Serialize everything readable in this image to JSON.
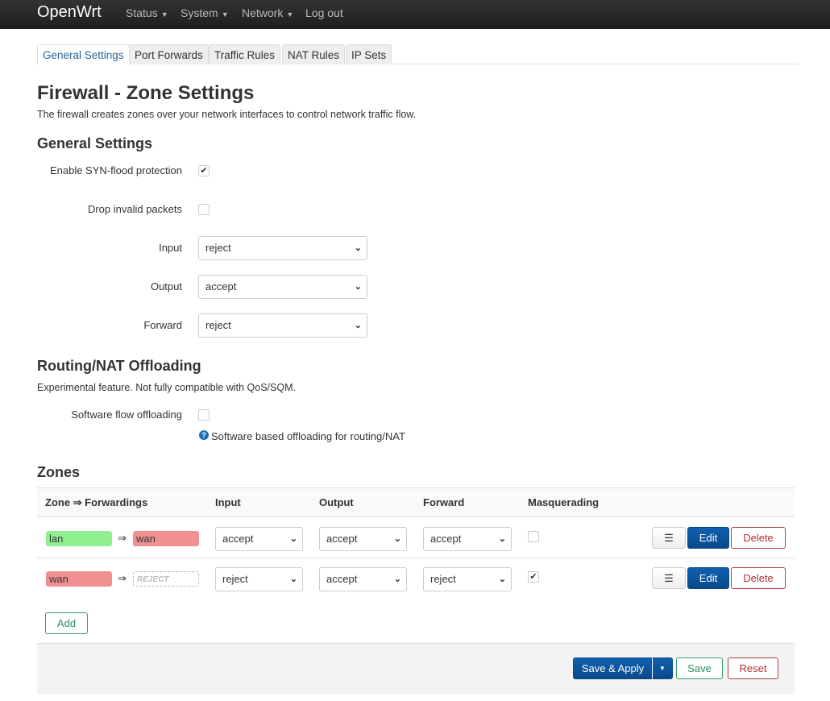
{
  "header": {
    "brand": "OpenWrt",
    "nav": [
      "Status",
      "System",
      "Network",
      "Log out"
    ]
  },
  "tabs": [
    "General Settings",
    "Port Forwards",
    "Traffic Rules",
    "NAT Rules",
    "IP Sets"
  ],
  "page": {
    "title": "Firewall - Zone Settings",
    "description": "The firewall creates zones over your network interfaces to control network traffic flow."
  },
  "general": {
    "heading": "General Settings",
    "syn_flood": {
      "label": "Enable SYN-flood protection",
      "checked": true
    },
    "drop_invalid": {
      "label": "Drop invalid packets",
      "checked": false
    },
    "input": {
      "label": "Input",
      "value": "reject"
    },
    "output": {
      "label": "Output",
      "value": "accept"
    },
    "forward": {
      "label": "Forward",
      "value": "reject"
    }
  },
  "offload": {
    "heading": "Routing/NAT Offloading",
    "description": "Experimental feature. Not fully compatible with QoS/SQM.",
    "label": "Software flow offloading",
    "checked": false,
    "help": "Software based offloading for routing/NAT"
  },
  "zones": {
    "heading": "Zones",
    "columns": [
      "Zone ⇒ Forwardings",
      "Input",
      "Output",
      "Forward",
      "Masquerading"
    ],
    "rows": [
      {
        "zone": "lan",
        "arrow": "⇒",
        "dest": "wan",
        "input": "accept",
        "output": "accept",
        "forward": "accept",
        "masq": false
      },
      {
        "zone": "wan",
        "arrow": "⇒",
        "dest": "REJECT",
        "input": "reject",
        "output": "accept",
        "forward": "reject",
        "masq": true
      }
    ],
    "menu_icon": "☰",
    "edit": "Edit",
    "delete": "Delete",
    "add": "Add"
  },
  "footer": {
    "save_apply": "Save & Apply",
    "save": "Save",
    "reset": "Reset"
  },
  "colors": {
    "lan": "#90f090",
    "wan": "#f09090",
    "primary": "#0a4a8a"
  }
}
